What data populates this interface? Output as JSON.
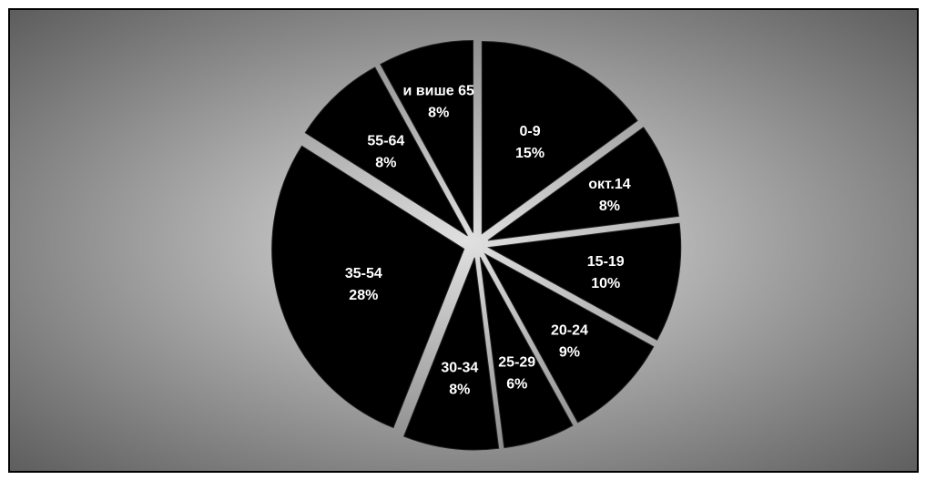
{
  "chart_data": {
    "type": "pie",
    "title": "",
    "exploded": true,
    "slice_color": "#000000",
    "label_color": "#ffffff",
    "background_colors": {
      "center": "#e0e0e0",
      "edge": "#555555"
    },
    "slices": [
      {
        "category": "0-9",
        "percent_label": "15%",
        "value": 15
      },
      {
        "category": "окт.14",
        "percent_label": "8%",
        "value": 8
      },
      {
        "category": "15-19",
        "percent_label": "10%",
        "value": 10
      },
      {
        "category": "20-24",
        "percent_label": "9%",
        "value": 9
      },
      {
        "category": "25-29",
        "percent_label": "6%",
        "value": 6
      },
      {
        "category": "30-34",
        "percent_label": "8%",
        "value": 8
      },
      {
        "category": "35-54",
        "percent_label": "28%",
        "value": 28
      },
      {
        "category": "55-64",
        "percent_label": "8%",
        "value": 8
      },
      {
        "category": "и више 65",
        "percent_label": "8%",
        "value": 8
      }
    ]
  }
}
